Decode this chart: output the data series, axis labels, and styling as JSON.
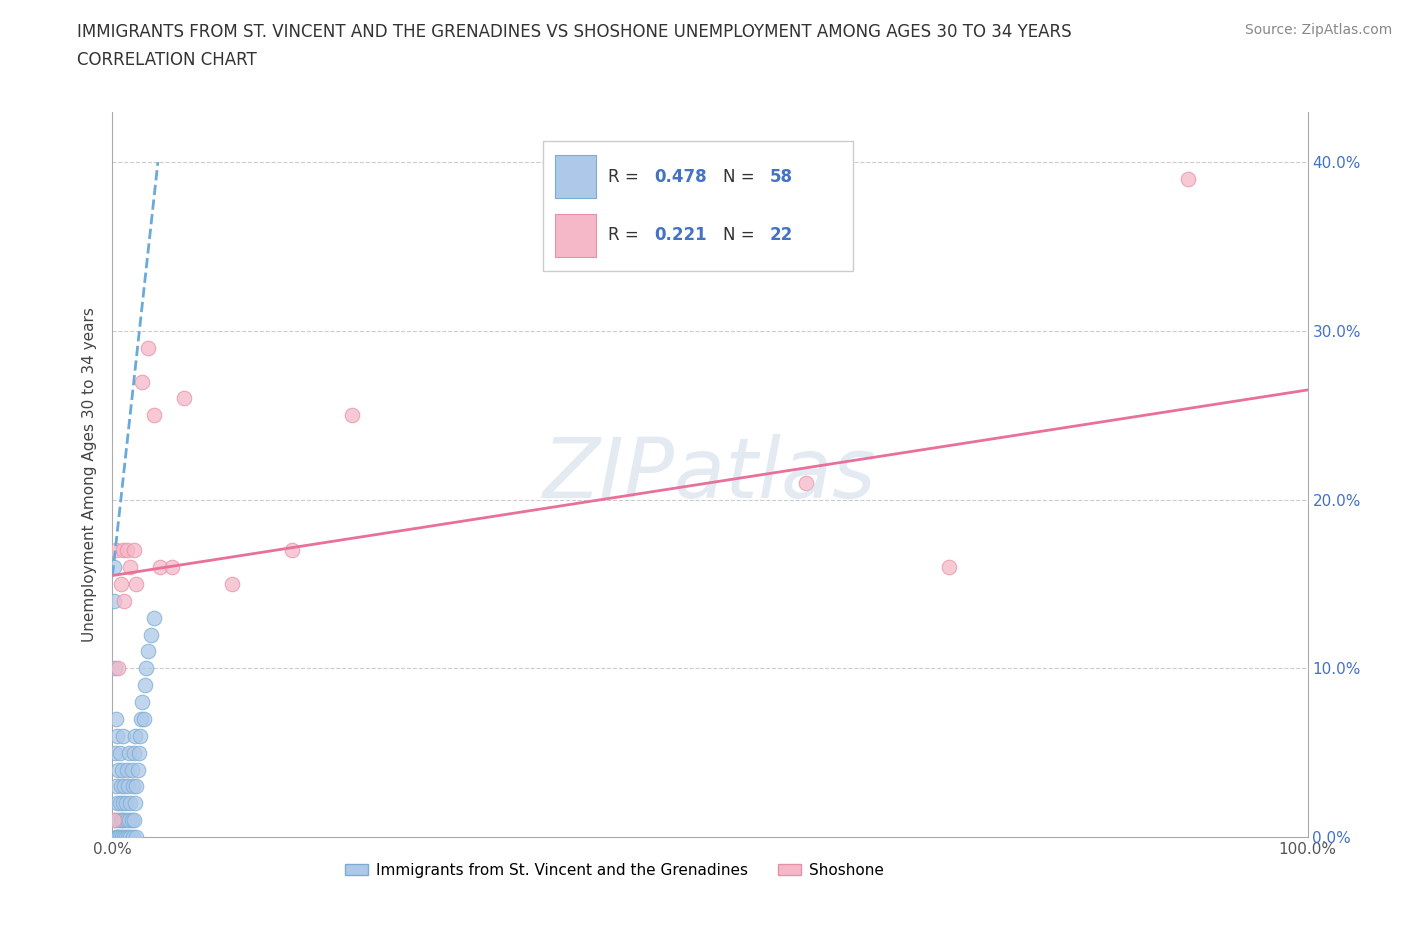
{
  "title_line1": "IMMIGRANTS FROM ST. VINCENT AND THE GRENADINES VS SHOSHONE UNEMPLOYMENT AMONG AGES 30 TO 34 YEARS",
  "title_line2": "CORRELATION CHART",
  "source_text": "Source: ZipAtlas.com",
  "ylabel": "Unemployment Among Ages 30 to 34 years",
  "xlim": [
    0,
    1.0
  ],
  "ylim": [
    0,
    0.43
  ],
  "xtick_pos": [
    0.0,
    0.1,
    0.2,
    0.3,
    0.4,
    0.5,
    0.6,
    0.7,
    0.8,
    0.9,
    1.0
  ],
  "xtick_labels": [
    "0.0%",
    "",
    "",
    "",
    "",
    "",
    "",
    "",
    "",
    "",
    "100.0%"
  ],
  "ytick_pos": [
    0.0,
    0.1,
    0.2,
    0.3,
    0.4
  ],
  "ytick_labels_left": [
    "",
    "",
    "",
    "",
    ""
  ],
  "ytick_labels_right": [
    "0.0%",
    "10.0%",
    "20.0%",
    "30.0%",
    "40.0%"
  ],
  "blue_R": 0.478,
  "blue_N": 58,
  "pink_R": 0.221,
  "pink_N": 22,
  "blue_color": "#adc8e8",
  "blue_edge": "#7aadd4",
  "pink_color": "#f5b8c8",
  "pink_edge": "#e890a8",
  "blue_line_color": "#6aaad8",
  "pink_line_color": "#e8709a",
  "watermark": "ZIPatlas",
  "legend_label_blue": "Immigrants from St. Vincent and the Grenadines",
  "legend_label_pink": "Shoshone",
  "blue_scatter_x": [
    0.001,
    0.001,
    0.002,
    0.002,
    0.002,
    0.003,
    0.003,
    0.003,
    0.004,
    0.004,
    0.004,
    0.005,
    0.005,
    0.005,
    0.006,
    0.006,
    0.006,
    0.007,
    0.007,
    0.008,
    0.008,
    0.008,
    0.009,
    0.009,
    0.01,
    0.01,
    0.01,
    0.011,
    0.011,
    0.012,
    0.012,
    0.013,
    0.013,
    0.014,
    0.014,
    0.015,
    0.015,
    0.016,
    0.016,
    0.017,
    0.017,
    0.018,
    0.018,
    0.019,
    0.019,
    0.02,
    0.02,
    0.021,
    0.022,
    0.023,
    0.024,
    0.025,
    0.026,
    0.027,
    0.028,
    0.03,
    0.032,
    0.035
  ],
  "blue_scatter_y": [
    0.14,
    0.16,
    0.01,
    0.05,
    0.1,
    0.0,
    0.03,
    0.07,
    0.0,
    0.02,
    0.06,
    0.0,
    0.01,
    0.04,
    0.0,
    0.02,
    0.05,
    0.01,
    0.03,
    0.0,
    0.01,
    0.04,
    0.02,
    0.06,
    0.0,
    0.01,
    0.03,
    0.0,
    0.02,
    0.01,
    0.04,
    0.0,
    0.03,
    0.01,
    0.05,
    0.0,
    0.02,
    0.01,
    0.04,
    0.0,
    0.03,
    0.01,
    0.05,
    0.02,
    0.06,
    0.0,
    0.03,
    0.04,
    0.05,
    0.06,
    0.07,
    0.08,
    0.07,
    0.09,
    0.1,
    0.11,
    0.12,
    0.13
  ],
  "pink_scatter_x": [
    0.001,
    0.003,
    0.005,
    0.007,
    0.009,
    0.01,
    0.012,
    0.015,
    0.018,
    0.02,
    0.025,
    0.03,
    0.035,
    0.04,
    0.05,
    0.06,
    0.1,
    0.15,
    0.2,
    0.58,
    0.7,
    0.9
  ],
  "pink_scatter_y": [
    0.01,
    0.17,
    0.1,
    0.15,
    0.17,
    0.14,
    0.17,
    0.16,
    0.17,
    0.15,
    0.27,
    0.29,
    0.25,
    0.16,
    0.16,
    0.26,
    0.15,
    0.17,
    0.25,
    0.21,
    0.16,
    0.39
  ],
  "blue_trend_x": [
    0.0,
    0.038
  ],
  "blue_trend_y": [
    0.155,
    0.4
  ],
  "pink_trend_x": [
    0.0,
    1.0
  ],
  "pink_trend_y": [
    0.155,
    0.265
  ]
}
